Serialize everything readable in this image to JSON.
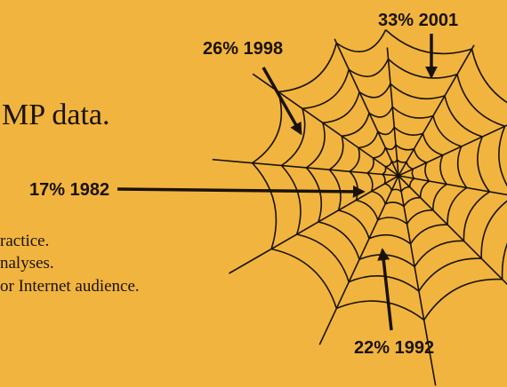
{
  "heading": "MP data.",
  "bullets": [
    "ractice.",
    "nalyses.",
    "or Internet audience."
  ],
  "annotations": [
    "33% 2001",
    "26% 1998",
    "17% 1982",
    "22% 1992"
  ]
}
